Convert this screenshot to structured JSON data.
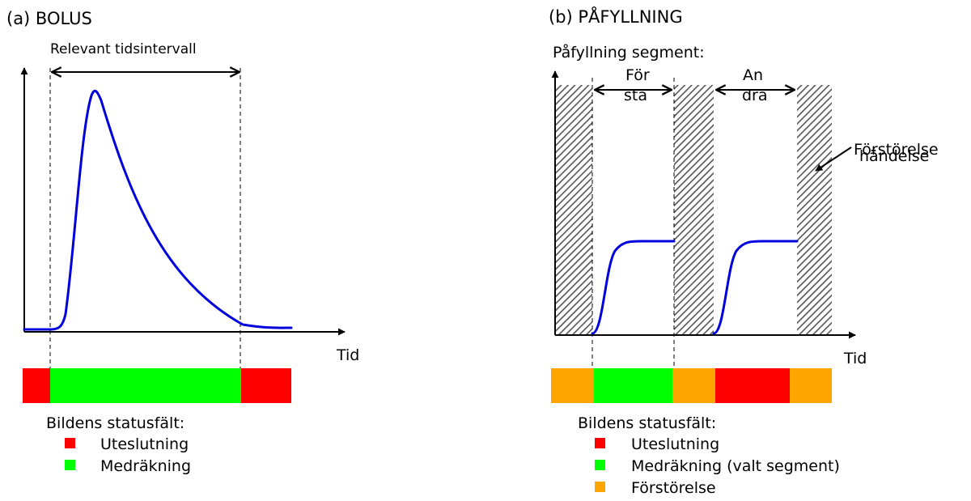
{
  "panel_a": {
    "title": "(a) BOLUS",
    "interval_label": "Relevant tidsintervall",
    "x_axis_label": "Tid",
    "status_bar": [
      "exclusion",
      "inclusion",
      "exclusion"
    ],
    "legend_title": "Bildens statusfält:",
    "legend": [
      {
        "label": "Uteslutning",
        "color": "#ff0000"
      },
      {
        "label": "Medräkning",
        "color": "#00ff00"
      }
    ]
  },
  "panel_b": {
    "title": "(b) PÅFYLLNING",
    "segment_heading": "Påfyllning segment:",
    "first_segment_label": [
      "För",
      "sta"
    ],
    "second_segment_label": [
      "An",
      "dra"
    ],
    "event_label": [
      "Förstörelse",
      "händelse"
    ],
    "x_axis_label": "Tid",
    "status_bar": [
      "destruction",
      "selected",
      "destruction",
      "exclusion",
      "destruction"
    ],
    "legend_title": "Bildens statusfält:",
    "legend": [
      {
        "label": "Uteslutning",
        "color": "#ff0000"
      },
      {
        "label": "Medräkning (valt segment)",
        "color": "#00ff00"
      },
      {
        "label": "Förstörelse",
        "color": "#ffa500"
      }
    ]
  },
  "colors": {
    "curve": "#0000dd",
    "exclusion": "#ff0000",
    "inclusion": "#00ff00",
    "destruction": "#ffa500",
    "hatch": "#555555"
  }
}
